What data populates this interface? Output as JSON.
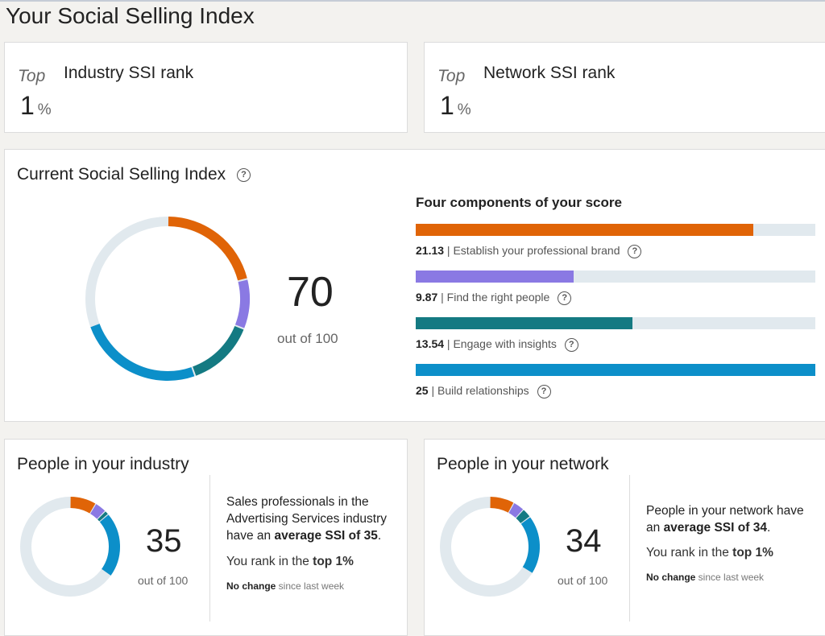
{
  "page": {
    "title": "Your Social Selling Index"
  },
  "industry_rank": {
    "top_label": "Top",
    "label": "Industry SSI rank",
    "value": "1",
    "unit": "%"
  },
  "network_rank": {
    "top_label": "Top",
    "label": "Network SSI rank",
    "value": "1",
    "unit": "%"
  },
  "ssi": {
    "title": "Current Social Selling Index",
    "score": "70",
    "out_of": "out of 100",
    "components_title": "Four components of your score",
    "components": [
      {
        "value": "21.13",
        "label": "Establish your professional brand",
        "max": 25,
        "color": "#e06407"
      },
      {
        "value": "9.87",
        "label": "Find the right people",
        "max": 25,
        "color": "#8a79e3"
      },
      {
        "value": "13.54",
        "label": "Engage with insights",
        "max": 25,
        "color": "#147a82"
      },
      {
        "value": "25",
        "label": "Build relationships",
        "max": 25,
        "color": "#0c8fc9"
      }
    ]
  },
  "industry": {
    "title": "People in your industry",
    "score": "35",
    "out_of": "out of 100",
    "desc_line1": "Sales professionals in the",
    "desc_line2": "Advertising Services industry",
    "desc_line3_pre": "have an ",
    "desc_line3_bold": "average SSI of 35",
    "desc_line3_post": ".",
    "rank_pre": "You rank in the ",
    "rank_bold": "top 1%",
    "change_bold": "No change",
    "change_rest": " since last week",
    "components": [
      8.6,
      3.8,
      1.4,
      21.2
    ]
  },
  "network": {
    "title": "People in your network",
    "score": "34",
    "out_of": "out of 100",
    "desc_line1": "People in your network have",
    "desc_line2_pre": "an ",
    "desc_line2_bold": "average SSI of 34",
    "desc_line2_post": ".",
    "rank_pre": "You rank in the ",
    "rank_bold": "top 1%",
    "change_bold": "No change",
    "change_rest": " since last week",
    "components": [
      8.0,
      3.7,
      3.1,
      19.2
    ]
  },
  "colors": {
    "track": "#e1e9ee",
    "brand": "#e06407",
    "people": "#8a79e3",
    "insights": "#147a82",
    "relationships": "#0c8fc9"
  }
}
